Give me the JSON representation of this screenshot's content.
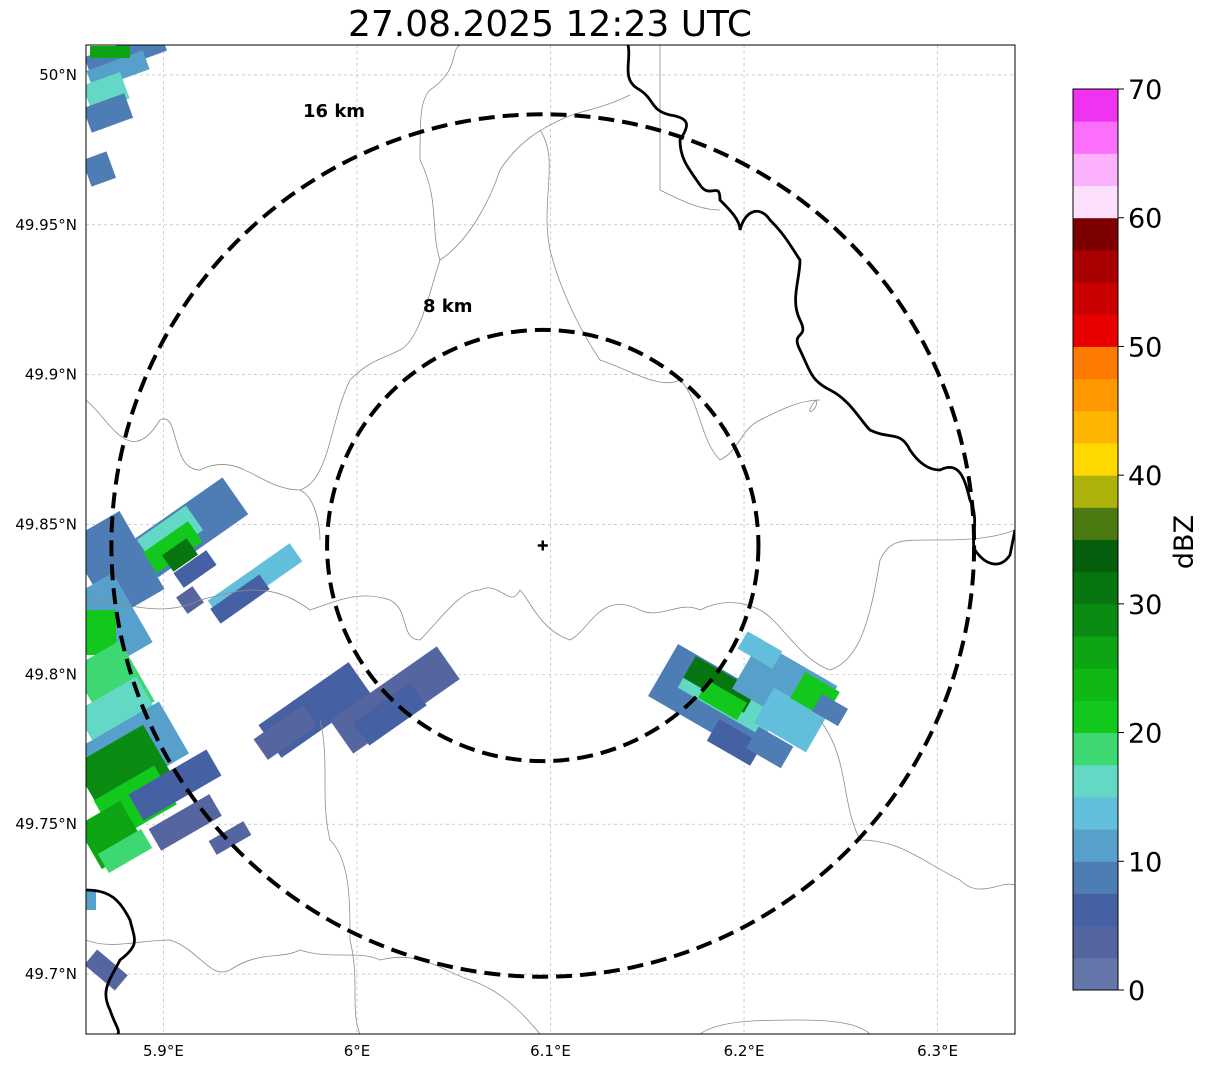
{
  "title": "27.08.2025 12:23 UTC",
  "map": {
    "lon_range": [
      5.86,
      6.34
    ],
    "lat_range": [
      49.68,
      50.01
    ],
    "lat_ticks": [
      {
        "value": 50.0,
        "label": "50°N"
      },
      {
        "value": 49.95,
        "label": "49.95°N"
      },
      {
        "value": 49.9,
        "label": "49.9°N"
      },
      {
        "value": 49.85,
        "label": "49.85°N"
      },
      {
        "value": 49.8,
        "label": "49.8°N"
      },
      {
        "value": 49.75,
        "label": "49.75°N"
      },
      {
        "value": 49.7,
        "label": "49.7°N"
      }
    ],
    "lon_ticks": [
      {
        "value": 5.9,
        "label": "5.9°E"
      },
      {
        "value": 6.0,
        "label": "6°E"
      },
      {
        "value": 6.1,
        "label": "6.1°E"
      },
      {
        "value": 6.2,
        "label": "6.2°E"
      },
      {
        "value": 6.3,
        "label": "6.3°E"
      }
    ],
    "gridlines": true,
    "radar_center": {
      "lon": 6.096,
      "lat": 49.843
    },
    "range_rings": [
      {
        "label": "8 km",
        "radius_km": 8
      },
      {
        "label": "16 km",
        "radius_km": 16
      }
    ]
  },
  "colorbar": {
    "label": "dBZ",
    "ticks": [
      "0",
      "10",
      "20",
      "30",
      "40",
      "50",
      "60",
      "70"
    ],
    "colors": [
      "#6577aa",
      "#5565a0",
      "#4660a4",
      "#4e7cb5",
      "#58a0cc",
      "#62bfdc",
      "#62d8c5",
      "#3ed873",
      "#12c81c",
      "#10b816",
      "#0ea514",
      "#0a8c12",
      "#077510",
      "#055e0c",
      "#4b7a10",
      "#adb20a",
      "#ffd800",
      "#ffb500",
      "#ff9800",
      "#ff7a00",
      "#e80000",
      "#c80000",
      "#a80000",
      "#7d0000",
      "#fde0fc",
      "#fcb1fc",
      "#fc6efc",
      "#f033f0"
    ]
  },
  "echoes": [
    {
      "lon": 5.955,
      "lat": 49.845,
      "dbz": 8
    },
    {
      "lon": 5.91,
      "lat": 49.84,
      "dbz": 24
    },
    {
      "lon": 5.93,
      "lat": 49.83,
      "dbz": 12
    },
    {
      "lon": 5.965,
      "lat": 49.825,
      "dbz": 14
    },
    {
      "lon": 5.975,
      "lat": 49.785,
      "dbz": 5
    },
    {
      "lon": 6.03,
      "lat": 49.79,
      "dbz": 5
    },
    {
      "lon": 6.19,
      "lat": 49.795,
      "dbz": 30
    },
    {
      "lon": 6.21,
      "lat": 49.785,
      "dbz": 12
    },
    {
      "lon": 6.225,
      "lat": 49.8,
      "dbz": 22
    },
    {
      "lon": 5.875,
      "lat": 49.77,
      "dbz": 28
    },
    {
      "lon": 5.88,
      "lat": 49.82,
      "dbz": 20
    },
    {
      "lon": 5.89,
      "lat": 49.75,
      "dbz": 24
    },
    {
      "lon": 5.915,
      "lat": 49.76,
      "dbz": 8
    },
    {
      "lon": 5.875,
      "lat": 49.99,
      "dbz": 12
    },
    {
      "lon": 5.885,
      "lat": 49.96,
      "dbz": 6
    }
  ]
}
